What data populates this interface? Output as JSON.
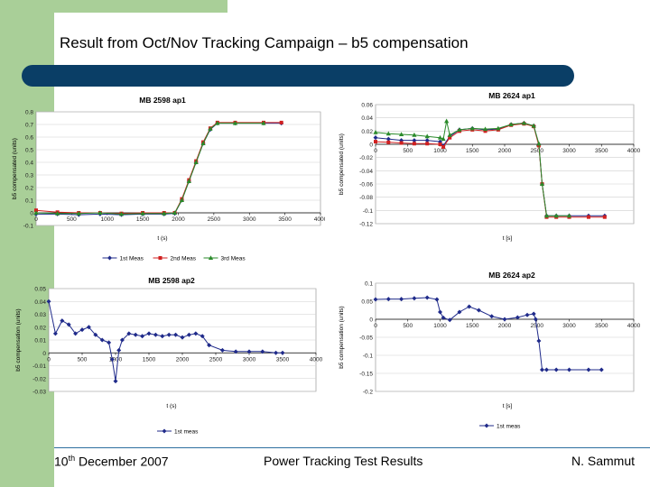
{
  "slide": {
    "title": "Result from Oct/Nov Tracking Campaign – b5 compensation",
    "footer_left_day": "10",
    "footer_left_sup": "th",
    "footer_left_rest": " December 2007",
    "footer_center": "Power Tracking Test Results",
    "footer_right": "N. Sammut"
  },
  "colors": {
    "green": "#a9cf98",
    "navy": "#0a3e66",
    "navy_series": "#1f2a8a",
    "red_series": "#d12020",
    "green_series": "#2a8a2a"
  },
  "chart_data": [
    {
      "type": "line",
      "title": "MB 2598 ap1",
      "xlabel": "t (s)",
      "ylabel": "b5 compensated (units)",
      "xlim": [
        0,
        4000
      ],
      "ylim": [
        -0.1,
        0.8
      ],
      "xticks": [
        "0",
        "500",
        "1000",
        "1500",
        "2000",
        "2500",
        "3000",
        "3500",
        "4000"
      ],
      "yticks": [
        "0.8",
        "0.7",
        "0.6",
        "0.5",
        "0.4",
        "0.3",
        "0.2",
        "0.1",
        "0",
        "-0.1"
      ],
      "legend": [
        "1st Meas",
        "2nd Meas",
        "3rd Meas"
      ],
      "series": [
        {
          "name": "1st Meas",
          "x": [
            0,
            300,
            600,
            900,
            1200,
            1500,
            1800,
            1950,
            2050,
            2150,
            2250,
            2350,
            2450,
            2550,
            2800,
            3200,
            3450
          ],
          "y": [
            -0.01,
            -0.01,
            -0.015,
            -0.01,
            -0.015,
            -0.01,
            -0.01,
            -0.005,
            0.1,
            0.25,
            0.4,
            0.55,
            0.66,
            0.71,
            0.71,
            0.71,
            0.71
          ]
        },
        {
          "name": "2nd Meas",
          "x": [
            0,
            300,
            600,
            900,
            1200,
            1500,
            1800,
            1950,
            2050,
            2150,
            2250,
            2350,
            2450,
            2550,
            2800,
            3200,
            3450
          ],
          "y": [
            0.02,
            0.005,
            0.0,
            0.0,
            -0.005,
            0.0,
            0.0,
            0.0,
            0.11,
            0.26,
            0.41,
            0.56,
            0.67,
            0.715,
            0.715,
            0.715,
            0.715
          ]
        },
        {
          "name": "3rd Meas",
          "x": [
            0,
            300,
            600,
            900,
            1200,
            1500,
            1800,
            1950,
            2050,
            2150,
            2250,
            2350,
            2450,
            2550,
            2800,
            3200
          ],
          "y": [
            0.0,
            -0.005,
            -0.005,
            0.0,
            -0.01,
            -0.005,
            -0.005,
            0.0,
            0.1,
            0.25,
            0.4,
            0.55,
            0.665,
            0.71,
            0.71,
            0.71
          ]
        }
      ]
    },
    {
      "type": "line",
      "title": "MB 2624 ap1",
      "xlabel": "t [s]",
      "ylabel": "b5 compensated (units)",
      "xlim": [
        0,
        4000
      ],
      "ylim": [
        -0.12,
        0.06
      ],
      "xticks": [
        "0",
        "500",
        "1000",
        "1500",
        "2000",
        "2500",
        "3000",
        "3500",
        "4000"
      ],
      "yticks": [
        "0.06",
        "0.04",
        "0.02",
        "0",
        "-0.02",
        "-0.04",
        "-0.06",
        "-0.08",
        "-0.1",
        "-0.12"
      ],
      "series": [
        {
          "name": "",
          "x": [
            0,
            200,
            400,
            600,
            800,
            1000,
            1050,
            1150,
            1300,
            1500,
            1700,
            1900,
            2100,
            2300,
            2450,
            2530,
            2580,
            2650,
            2800,
            3000,
            3300,
            3550
          ],
          "y": [
            0.01,
            0.008,
            0.006,
            0.006,
            0.006,
            0.004,
            -0.002,
            0.012,
            0.022,
            0.024,
            0.022,
            0.023,
            0.03,
            0.032,
            0.028,
            0.0,
            -0.06,
            -0.108,
            -0.108,
            -0.108,
            -0.108,
            -0.108
          ]
        },
        {
          "name": "",
          "x": [
            0,
            200,
            400,
            600,
            800,
            1000,
            1050,
            1150,
            1300,
            1500,
            1700,
            1900,
            2100,
            2300,
            2450,
            2530,
            2580,
            2650,
            2800,
            3000,
            3300,
            3550
          ],
          "y": [
            0.004,
            0.003,
            0.002,
            0.001,
            0.001,
            0.0,
            -0.004,
            0.01,
            0.02,
            0.022,
            0.02,
            0.022,
            0.029,
            0.031,
            0.027,
            -0.002,
            -0.06,
            -0.11,
            -0.11,
            -0.11,
            -0.11,
            -0.11
          ]
        },
        {
          "name": "",
          "x": [
            0,
            200,
            400,
            600,
            800,
            1000,
            1050,
            1100,
            1150,
            1300,
            1500,
            1700,
            1900,
            2100,
            2300,
            2450,
            2530,
            2580,
            2650,
            2800,
            3000
          ],
          "y": [
            0.018,
            0.016,
            0.015,
            0.014,
            0.012,
            0.01,
            0.008,
            0.035,
            0.014,
            0.022,
            0.024,
            0.023,
            0.024,
            0.03,
            0.032,
            0.028,
            0.001,
            -0.06,
            -0.108,
            -0.108,
            -0.108
          ]
        }
      ]
    },
    {
      "type": "line",
      "title": "MB 2598 ap2",
      "xlabel": "t (s)",
      "ylabel": "b5 compensation (units)",
      "xlim": [
        0,
        4000
      ],
      "ylim": [
        -0.03,
        0.05
      ],
      "xticks": [
        "0",
        "500",
        "1000",
        "1500",
        "2000",
        "2500",
        "3000",
        "3500",
        "4000"
      ],
      "yticks": [
        "0.05",
        "0.04",
        "0.03",
        "0.02",
        "0.01",
        "0",
        "-0.01",
        "-0.02",
        "-0.03"
      ],
      "legend": [
        "1st meas"
      ],
      "series": [
        {
          "name": "1st meas",
          "x": [
            0,
            100,
            200,
            300,
            400,
            500,
            600,
            700,
            800,
            900,
            950,
            1000,
            1050,
            1100,
            1200,
            1300,
            1400,
            1500,
            1600,
            1700,
            1800,
            1900,
            2000,
            2100,
            2200,
            2300,
            2400,
            2600,
            2800,
            3000,
            3200,
            3400,
            3500
          ],
          "y": [
            0.04,
            0.015,
            0.025,
            0.022,
            0.015,
            0.018,
            0.02,
            0.014,
            0.01,
            0.008,
            -0.005,
            -0.022,
            0.002,
            0.01,
            0.015,
            0.014,
            0.013,
            0.015,
            0.014,
            0.013,
            0.014,
            0.014,
            0.012,
            0.014,
            0.015,
            0.013,
            0.006,
            0.002,
            0.001,
            0.001,
            0.001,
            0.0,
            0.0
          ]
        }
      ]
    },
    {
      "type": "line",
      "title": "MB 2624 ap2",
      "xlabel": "t [s]",
      "ylabel": "b5 compensation (units)",
      "xlim": [
        0,
        4000
      ],
      "ylim": [
        -0.2,
        0.1
      ],
      "xticks": [
        "0",
        "500",
        "1000",
        "1500",
        "2000",
        "2500",
        "3000",
        "3500",
        "4000"
      ],
      "yticks": [
        "0.1",
        "0.05",
        "0",
        "-0.05",
        "-0.1",
        "-0.15",
        "-0.2"
      ],
      "legend": [
        "1st meas"
      ],
      "series": [
        {
          "name": "1st meas",
          "x": [
            0,
            200,
            400,
            600,
            800,
            950,
            1000,
            1050,
            1150,
            1300,
            1450,
            1600,
            1800,
            2000,
            2200,
            2350,
            2450,
            2480,
            2530,
            2580,
            2650,
            2800,
            3000,
            3300,
            3500
          ],
          "y": [
            0.055,
            0.056,
            0.056,
            0.058,
            0.06,
            0.055,
            0.02,
            0.004,
            -0.002,
            0.02,
            0.035,
            0.025,
            0.008,
            0.0,
            0.005,
            0.012,
            0.015,
            0.0,
            -0.06,
            -0.14,
            -0.14,
            -0.14,
            -0.14,
            -0.14,
            -0.14
          ]
        }
      ]
    }
  ]
}
